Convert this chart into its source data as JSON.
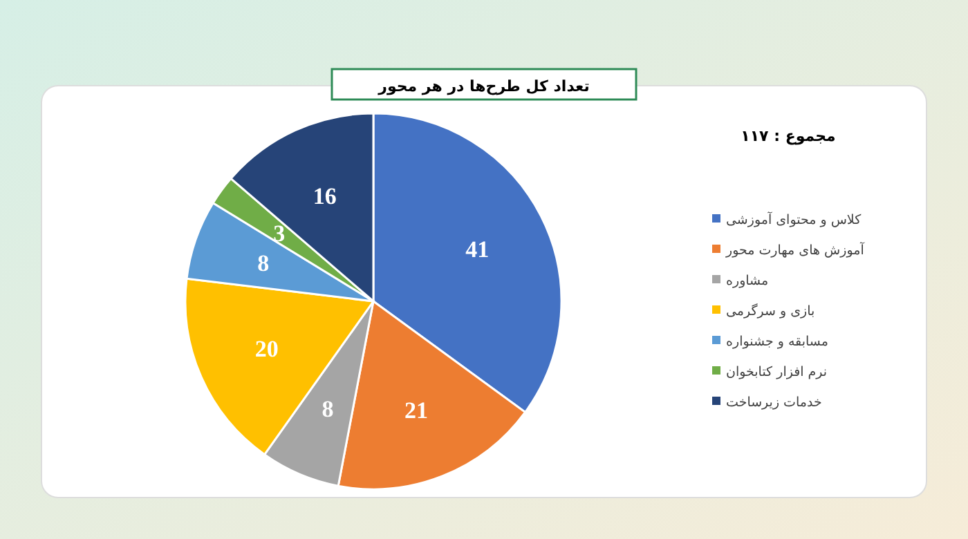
{
  "chart_data": {
    "type": "pie",
    "title": "تعداد کل طرح‌ها در هر محور",
    "categories": [
      "کلاس و محتوای آموزشی",
      "آموزش های مهارت محور",
      "مشاوره",
      "بازی و سرگرمی",
      "مسابقه و جشنواره",
      "نرم افزار کتابخوان",
      "خدمات زیرساخت"
    ],
    "values": [
      41,
      21,
      8,
      20,
      8,
      3,
      16
    ],
    "colors": [
      "#4472c4",
      "#ed7d31",
      "#a5a5a5",
      "#ffc000",
      "#5b9bd5",
      "#70ad47",
      "#264478"
    ],
    "data_labels": true,
    "legend": "right",
    "annotations": [
      "مجموع : ۱۱۷"
    ]
  }
}
